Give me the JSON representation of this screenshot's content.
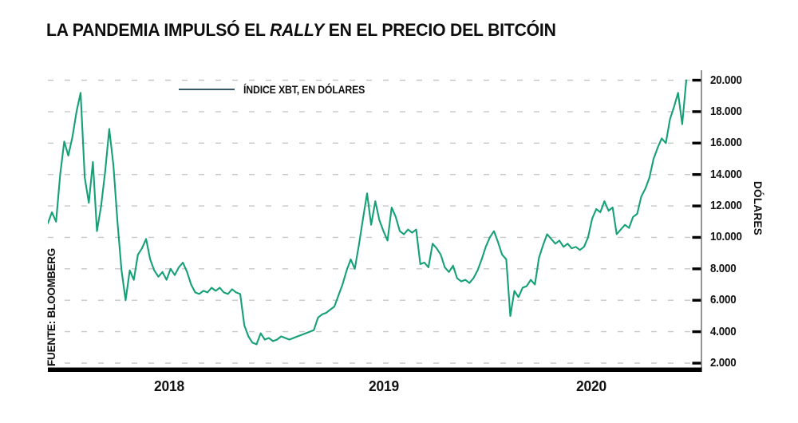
{
  "title": {
    "part1": "LA PANDEMIA IMPULSÓ EL ",
    "italic": "RALLY",
    "part2": " EN EL PRECIO DEL BITCÓIN"
  },
  "legend": {
    "label": "ÍNDICE XBT, EN DÓLARES"
  },
  "source": "FUENTE: BLOOMBERG",
  "y_axis": {
    "title": "DÓLARES",
    "tick_labels": [
      "20.000",
      "18.000",
      "16.000",
      "14.000",
      "12.000",
      "10.000",
      "8.000",
      "6.000",
      "4.000",
      "2.000"
    ],
    "min": 2000,
    "max": 20000,
    "step": 2000
  },
  "x_axis": {
    "tick_labels": [
      "2018",
      "2019",
      "2020"
    ]
  },
  "colors": {
    "line": "#16a078",
    "legend_line": "#33566b",
    "grid": "#c8c8c8",
    "axis_line": "#7a7a7a",
    "tick": "#000000",
    "baseline": "#000000",
    "text": "#111111"
  },
  "chart_data": {
    "type": "line",
    "title": "LA PANDEMIA IMPULSÓ EL RALLY EN EL PRECIO DEL BITCÓIN",
    "xlabel": "",
    "ylabel": "DÓLARES",
    "ylim": [
      2000,
      20000
    ],
    "y_tick_step": 2000,
    "x_tick_labels": [
      "2018",
      "2019",
      "2020"
    ],
    "grid": "horizontal-dashed",
    "legend_position": "top-center",
    "series": [
      {
        "name": "ÍNDICE XBT, EN DÓLARES",
        "color": "#16a078",
        "unit": "dólares",
        "values": [
          10900,
          11600,
          11000,
          14000,
          16100,
          15200,
          16400,
          18000,
          19200,
          13800,
          12200,
          14800,
          10400,
          12000,
          14200,
          16900,
          14600,
          11000,
          7900,
          6000,
          7900,
          7300,
          8900,
          9300,
          9900,
          8600,
          7900,
          7500,
          7800,
          7300,
          8000,
          7600,
          8100,
          8400,
          7800,
          7000,
          6500,
          6400,
          6600,
          6500,
          6800,
          6600,
          6800,
          6500,
          6400,
          6700,
          6500,
          6400,
          4400,
          3700,
          3300,
          3200,
          3900,
          3500,
          3600,
          3400,
          3500,
          3700,
          3600,
          3500,
          3600,
          3700,
          3800,
          3900,
          4000,
          4100,
          4900,
          5100,
          5200,
          5400,
          5600,
          6300,
          7000,
          7900,
          8600,
          8000,
          9500,
          11200,
          12800,
          10800,
          12300,
          11100,
          10400,
          9800,
          11900,
          11300,
          10400,
          10200,
          10500,
          10300,
          10500,
          8300,
          8400,
          8100,
          9600,
          9300,
          8900,
          8100,
          7800,
          8200,
          7400,
          7200,
          7300,
          7100,
          7400,
          7900,
          8600,
          9400,
          10000,
          10400,
          9700,
          8900,
          8600,
          5000,
          6600,
          6200,
          6800,
          6900,
          7300,
          7000,
          8700,
          9500,
          10200,
          9900,
          9600,
          9800,
          9400,
          9600,
          9300,
          9400,
          9200,
          9400,
          10000,
          11200,
          11800,
          11600,
          12300,
          11700,
          11900,
          10200,
          10500,
          10800,
          10600,
          11300,
          11500,
          12600,
          13100,
          13800,
          15000,
          15700,
          16300,
          16000,
          17500,
          18300,
          19200,
          17200,
          20000
        ]
      }
    ]
  }
}
